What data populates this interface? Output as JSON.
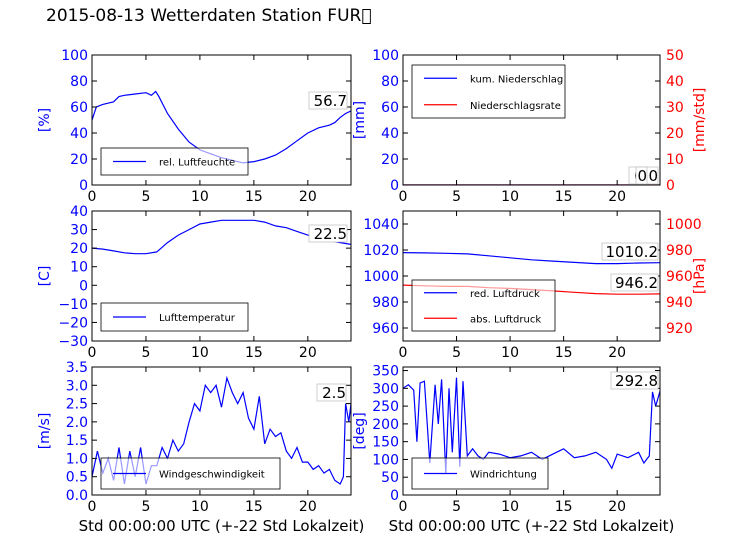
{
  "title": "2015-08-13 Wetterdaten Station FUR\u0000",
  "colors": {
    "blue": "#0000ff",
    "red": "#ff0000",
    "black": "#000000"
  },
  "chart_data": [
    {
      "id": "humidity",
      "type": "line",
      "xlim": [
        0,
        24
      ],
      "ylim": [
        0,
        100
      ],
      "xticks": [
        "0",
        "5",
        "10",
        "15",
        "20"
      ],
      "yticks": [
        "0",
        "20",
        "40",
        "60",
        "80",
        "100"
      ],
      "ylabel": "[%]",
      "ylabel_color": "#0000ff",
      "value_label": "56.7",
      "legend_position": "lower-left",
      "series": [
        {
          "name": "rel. Luftfeuchte",
          "color": "#0000ff",
          "x": [
            0,
            0.4,
            1,
            2,
            2.5,
            3,
            4,
            5,
            5.5,
            5.9,
            6.2,
            7,
            8,
            9,
            10,
            11,
            12,
            13,
            14,
            15,
            16,
            17,
            18,
            19,
            20,
            21,
            22,
            22.5,
            23,
            23.5,
            24
          ],
          "y": [
            50,
            60,
            62,
            64,
            68,
            69,
            70,
            71,
            69,
            72,
            68,
            55,
            43,
            33,
            27,
            24,
            21,
            19,
            17,
            18,
            20,
            23,
            28,
            34,
            40,
            44,
            46,
            48,
            52,
            55,
            57
          ]
        }
      ]
    },
    {
      "id": "precipitation",
      "type": "line",
      "xlim": [
        0,
        24
      ],
      "ylim": [
        0,
        100
      ],
      "xticks": [
        "0",
        "5",
        "10",
        "15",
        "20"
      ],
      "yticks": [
        "0",
        "20",
        "40",
        "60",
        "80",
        "100"
      ],
      "ylabel": "[mm]",
      "ylabel_color": "#0000ff",
      "y2lim": [
        0,
        50
      ],
      "y2ticks": [
        "0",
        "10",
        "20",
        "30",
        "40",
        "50"
      ],
      "y2label": "[mm/std]",
      "y2label_color": "#ff0000",
      "value_label": "0.0",
      "value_label2": "0",
      "legend_position": "upper-left",
      "series": [
        {
          "name": "kum. Niederschlag",
          "color": "#0000ff",
          "x": [
            0,
            24
          ],
          "y": [
            0,
            0
          ]
        },
        {
          "name": "Niederschlagsrate",
          "color": "#ff0000",
          "x": [
            0,
            24
          ],
          "y": [
            0,
            0
          ]
        }
      ]
    },
    {
      "id": "temperature",
      "type": "line",
      "xlim": [
        0,
        24
      ],
      "ylim": [
        -30,
        40
      ],
      "xticks": [
        "0",
        "5",
        "10",
        "15",
        "20"
      ],
      "yticks": [
        "−30",
        "−20",
        "−10",
        "0",
        "10",
        "20",
        "30",
        "40"
      ],
      "ylabel": "[C]",
      "ylabel_color": "#0000ff",
      "value_label": "22.5",
      "legend_position": "lower-left",
      "series": [
        {
          "name": "Lufttemperatur",
          "color": "#0000ff",
          "x": [
            0,
            1,
            2,
            3,
            4,
            5,
            6,
            7,
            8,
            9,
            10,
            11,
            12,
            13,
            14,
            15,
            16,
            17,
            18,
            19,
            20,
            21,
            22,
            23,
            24
          ],
          "y": [
            20,
            19.5,
            18.5,
            17.5,
            17,
            17,
            18,
            23,
            27,
            30,
            33,
            34,
            35,
            35,
            35,
            35,
            34,
            32,
            31,
            29,
            27,
            25,
            24,
            23,
            22
          ]
        }
      ]
    },
    {
      "id": "pressure",
      "type": "line",
      "xlim": [
        0,
        24
      ],
      "ylim": [
        950,
        1050
      ],
      "xticks": [
        "0",
        "5",
        "10",
        "15",
        "20"
      ],
      "yticks": [
        "960",
        "980",
        "1000",
        "1020",
        "1040"
      ],
      "y2lim": [
        910,
        1010
      ],
      "y2ticks": [
        "920",
        "940",
        "960",
        "980",
        "1000"
      ],
      "y2label": "[hPa]",
      "y2label_color": "#ff0000",
      "value_label": "1010.2",
      "value_label2": "946.2",
      "legend_position": "lower-left",
      "series": [
        {
          "name": "red. Luftdruck",
          "color": "#0000ff",
          "x": [
            0,
            2,
            4,
            6,
            8,
            10,
            12,
            14,
            16,
            18,
            20,
            22,
            24
          ],
          "y": [
            1018,
            1017.8,
            1017.5,
            1017,
            1015.5,
            1014,
            1012.5,
            1011.5,
            1010.5,
            1009.5,
            1009.5,
            1010,
            1010.2
          ]
        },
        {
          "name": "abs. Luftdruck",
          "color": "#ff0000",
          "x": [
            0,
            2,
            4,
            6,
            8,
            10,
            12,
            14,
            16,
            18,
            20,
            22,
            24
          ],
          "y": [
            953,
            952.5,
            952,
            952,
            951,
            950.5,
            949.5,
            948.5,
            947.5,
            946.5,
            946,
            946,
            946.2
          ]
        }
      ]
    },
    {
      "id": "wind-speed",
      "type": "line",
      "xlim": [
        0,
        24
      ],
      "ylim": [
        0,
        3.5
      ],
      "xticks": [
        "0",
        "5",
        "10",
        "15",
        "20"
      ],
      "yticks": [
        "0.0",
        "0.5",
        "1.0",
        "1.5",
        "2.0",
        "2.5",
        "3.0",
        "3.5"
      ],
      "ylabel": "[m/s]",
      "ylabel_color": "#0000ff",
      "xlabel": "Std 00:00:00 UTC (+-22 Std Lokalzeit)",
      "value_label": "2.5",
      "legend_position": "lower-center",
      "series": [
        {
          "name": "Windgeschwindigkeit",
          "color": "#0000ff",
          "x": [
            0,
            0.5,
            1,
            1.5,
            2,
            2.5,
            3,
            3.5,
            4,
            4.5,
            5,
            5.5,
            6,
            6.5,
            7,
            7.5,
            8,
            8.5,
            9,
            9.5,
            10,
            10.5,
            11,
            11.5,
            12,
            12.5,
            13,
            13.5,
            14,
            14.5,
            15,
            15.5,
            16,
            16.5,
            17,
            17.5,
            18,
            18.5,
            19,
            19.5,
            20,
            20.5,
            21,
            21.5,
            22,
            22.5,
            23,
            23.3,
            23.5,
            23.8,
            24
          ],
          "y": [
            0.5,
            1.2,
            0.6,
            1.0,
            0.4,
            1.3,
            0.3,
            1.2,
            0.5,
            1.3,
            0.3,
            0.8,
            0.8,
            1.3,
            1.0,
            1.5,
            1.2,
            1.4,
            2.0,
            2.5,
            2.3,
            3.0,
            2.8,
            3.0,
            2.4,
            3.2,
            2.8,
            2.5,
            2.8,
            2.1,
            1.8,
            2.7,
            1.4,
            1.8,
            1.6,
            1.7,
            1.2,
            1.0,
            1.3,
            0.9,
            0.9,
            0.7,
            0.8,
            0.6,
            0.7,
            0.4,
            0.3,
            0.5,
            2.5,
            2.0,
            2.5
          ]
        }
      ]
    },
    {
      "id": "wind-direction",
      "type": "line",
      "xlim": [
        0,
        24
      ],
      "ylim": [
        0,
        360
      ],
      "xticks": [
        "0",
        "5",
        "10",
        "15",
        "20"
      ],
      "yticks": [
        "0",
        "50",
        "100",
        "150",
        "200",
        "250",
        "300",
        "350"
      ],
      "ylabel": "[deg]",
      "ylabel_color": "#0000ff",
      "xlabel": "Std 00:00:00 UTC (+-22 Std Lokalzeit)",
      "value_label": "292.8",
      "legend_position": "lower-left",
      "series": [
        {
          "name": "Windrichtung",
          "color": "#0000ff",
          "x": [
            0,
            0.5,
            1,
            1.3,
            1.6,
            2,
            2.5,
            3,
            3.3,
            3.6,
            4,
            4.3,
            4.6,
            5,
            5.3,
            5.6,
            6,
            6.5,
            7,
            7.5,
            8,
            9,
            10,
            11,
            12,
            13,
            14,
            15,
            16,
            17,
            18,
            19,
            19.5,
            20,
            21,
            22,
            22.5,
            23,
            23.3,
            23.6,
            24
          ],
          "y": [
            300,
            310,
            295,
            150,
            315,
            320,
            90,
            310,
            200,
            325,
            60,
            300,
            120,
            330,
            80,
            320,
            110,
            130,
            110,
            100,
            120,
            115,
            105,
            110,
            120,
            100,
            115,
            130,
            105,
            110,
            120,
            100,
            75,
            115,
            105,
            120,
            90,
            110,
            290,
            250,
            292
          ]
        }
      ]
    }
  ]
}
